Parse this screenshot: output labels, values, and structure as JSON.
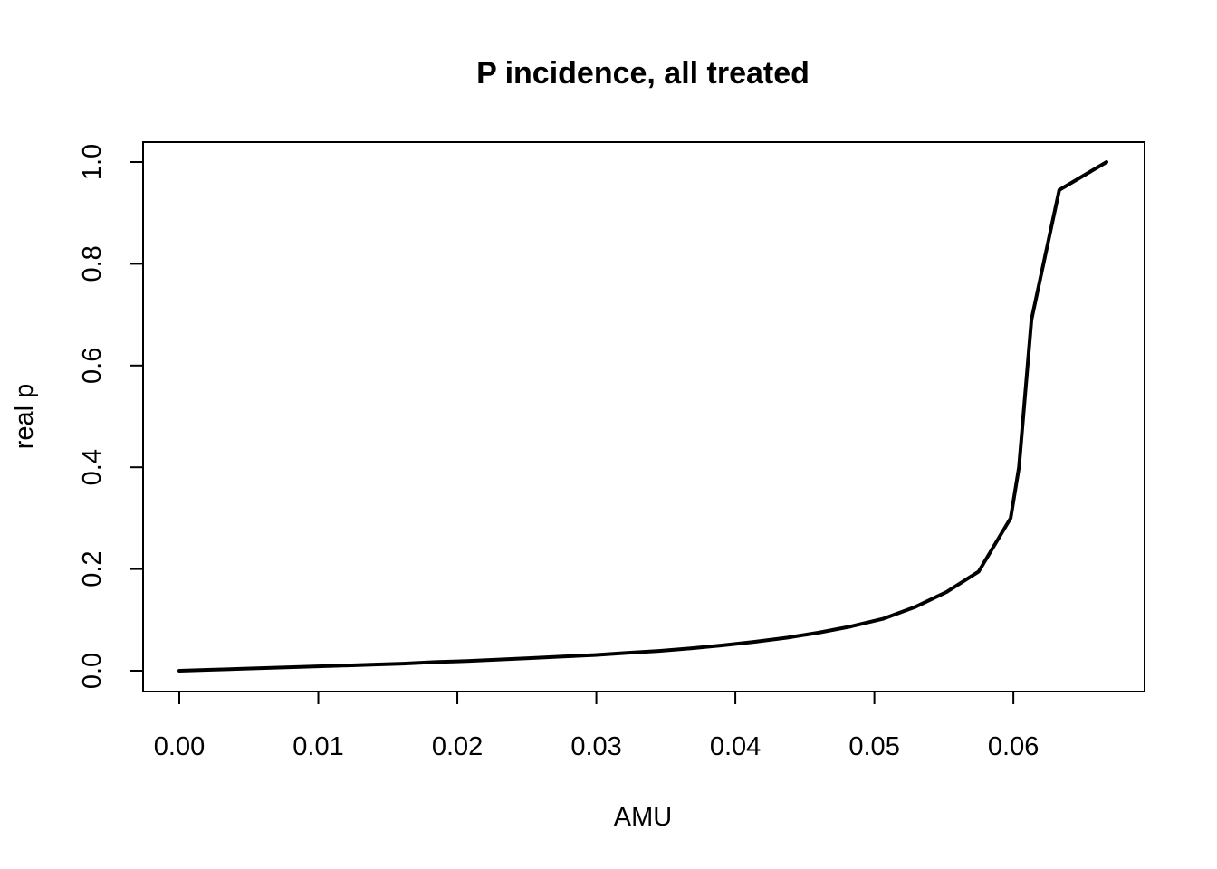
{
  "chart_data": {
    "type": "line",
    "title": "P incidence, all treated",
    "xlabel": "AMU",
    "ylabel": "real p",
    "xlim": [
      0.0,
      0.0667
    ],
    "ylim": [
      0.0,
      1.0
    ],
    "x_ticks": [
      "0.00",
      "0.01",
      "0.02",
      "0.03",
      "0.04",
      "0.05",
      "0.06"
    ],
    "y_ticks": [
      "0.0",
      "0.2",
      "0.4",
      "0.6",
      "0.8",
      "1.0"
    ],
    "grid": false,
    "legend": "none",
    "line_color": "#000000",
    "series": [
      {
        "x": [
          0.0,
          0.0023,
          0.0046,
          0.0069,
          0.0092,
          0.0115,
          0.0138,
          0.0161,
          0.0184,
          0.0207,
          0.023,
          0.0253,
          0.0276,
          0.0299,
          0.0322,
          0.0345,
          0.0368,
          0.0391,
          0.0414,
          0.0437,
          0.046,
          0.0483,
          0.0506,
          0.0529,
          0.0552,
          0.0575,
          0.0598,
          0.0604,
          0.0613,
          0.0633,
          0.0667
        ],
        "y": [
          0.0,
          0.002,
          0.004,
          0.006,
          0.008,
          0.01,
          0.012,
          0.014,
          0.017,
          0.019,
          0.022,
          0.025,
          0.028,
          0.031,
          0.035,
          0.039,
          0.044,
          0.05,
          0.057,
          0.065,
          0.075,
          0.087,
          0.102,
          0.125,
          0.155,
          0.195,
          0.3,
          0.4,
          0.69,
          0.945,
          1.0
        ]
      }
    ]
  }
}
